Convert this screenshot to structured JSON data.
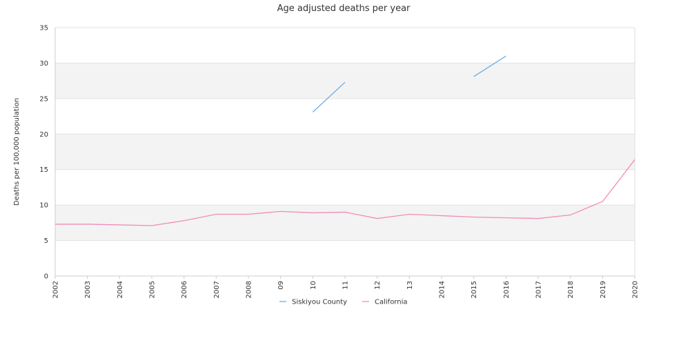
{
  "chart_data": {
    "type": "line",
    "title": "Age adjusted deaths per year",
    "xlabel": "",
    "ylabel": "Deaths per 100,000 population",
    "categories": [
      "2002",
      "2003",
      "2004",
      "2005",
      "2006",
      "2007",
      "2008",
      "09",
      "10",
      "11",
      "12",
      "13",
      "2014",
      "2015",
      "2016",
      "2017",
      "2018",
      "2019",
      "2020"
    ],
    "ylim": [
      0,
      35
    ],
    "yticks": [
      0,
      5,
      10,
      15,
      20,
      25,
      30,
      35
    ],
    "grid": "alternating bands",
    "legend_position": "bottom-center",
    "series": [
      {
        "name": "Siskiyou County",
        "color": "#6aaee8",
        "values": [
          null,
          null,
          null,
          null,
          null,
          null,
          null,
          null,
          23.1,
          27.3,
          null,
          null,
          null,
          28.1,
          31.0,
          null,
          null,
          null,
          null
        ]
      },
      {
        "name": "California",
        "color": "#f08cb8",
        "values": [
          7.3,
          7.3,
          7.2,
          7.1,
          7.8,
          8.7,
          8.7,
          9.1,
          8.9,
          9.0,
          8.1,
          8.7,
          8.5,
          8.3,
          8.2,
          8.1,
          8.6,
          10.5,
          16.4
        ]
      }
    ]
  }
}
